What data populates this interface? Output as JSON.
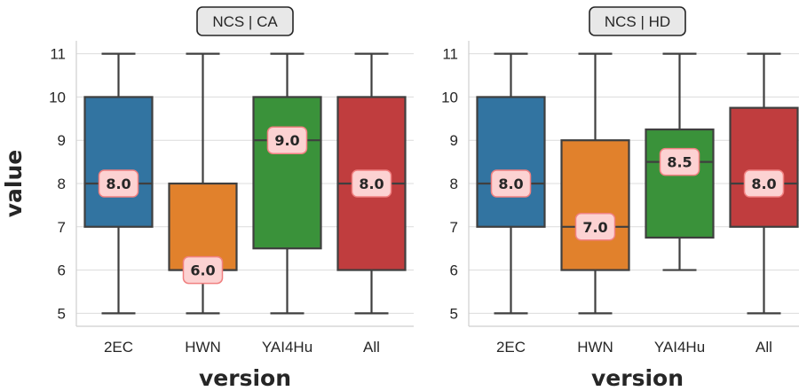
{
  "chart_data": [
    {
      "type": "boxplot",
      "title": "NCS | CA",
      "xlabel": "version",
      "ylabel": "value",
      "categories": [
        "2EC",
        "HWN",
        "YAI4Hu",
        "All"
      ],
      "ylim": [
        4.7,
        11.3
      ],
      "yticks": [
        5,
        6,
        7,
        8,
        9,
        10,
        11
      ],
      "grid": true,
      "boxes": [
        {
          "category": "2EC",
          "min": 5,
          "q1": 7,
          "median": 8,
          "q3": 10,
          "max": 11,
          "label": "8.0",
          "color": "#3274a1"
        },
        {
          "category": "HWN",
          "min": 5,
          "q1": 6,
          "median": 6,
          "q3": 8,
          "max": 11,
          "label": "6.0",
          "color": "#e1812c"
        },
        {
          "category": "YAI4Hu",
          "min": 5,
          "q1": 6.5,
          "median": 9,
          "q3": 10,
          "max": 11,
          "label": "9.0",
          "color": "#3a923a"
        },
        {
          "category": "All",
          "min": 5,
          "q1": 6,
          "median": 8,
          "q3": 10,
          "max": 11,
          "label": "8.0",
          "color": "#c03d3e"
        }
      ]
    },
    {
      "type": "boxplot",
      "title": "NCS | HD",
      "xlabel": "version",
      "ylabel": "",
      "categories": [
        "2EC",
        "HWN",
        "YAI4Hu",
        "All"
      ],
      "ylim": [
        4.7,
        11.3
      ],
      "yticks": [
        5,
        6,
        7,
        8,
        9,
        10,
        11
      ],
      "grid": true,
      "boxes": [
        {
          "category": "2EC",
          "min": 5,
          "q1": 7,
          "median": 8,
          "q3": 10,
          "max": 11,
          "label": "8.0",
          "color": "#3274a1"
        },
        {
          "category": "HWN",
          "min": 5,
          "q1": 6,
          "median": 7,
          "q3": 9,
          "max": 11,
          "label": "7.0",
          "color": "#e1812c"
        },
        {
          "category": "YAI4Hu",
          "min": 6,
          "q1": 6.75,
          "median": 8.5,
          "q3": 9.25,
          "max": 11,
          "label": "8.5",
          "color": "#3a923a"
        },
        {
          "category": "All",
          "min": 5,
          "q1": 7,
          "median": 8,
          "q3": 9.75,
          "max": 11,
          "label": "8.0",
          "color": "#c03d3e"
        }
      ]
    }
  ]
}
